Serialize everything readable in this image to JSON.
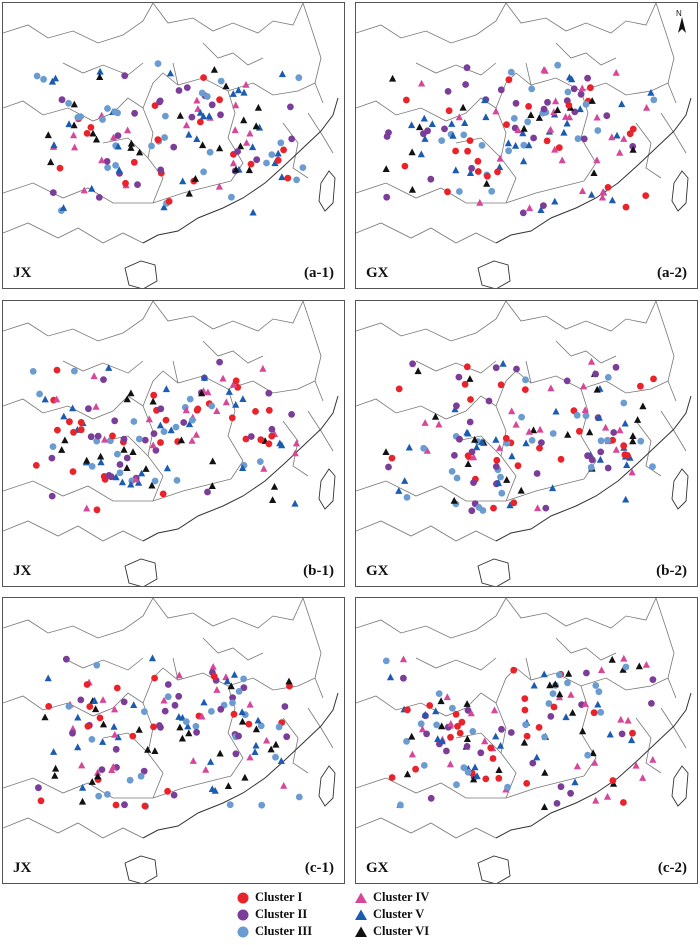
{
  "panels": [
    {
      "id": "a-1",
      "code": "JX",
      "tag": "(a-1)",
      "show_north": false
    },
    {
      "id": "a-2",
      "code": "GX",
      "tag": "(a-2)",
      "show_north": true
    },
    {
      "id": "b-1",
      "code": "JX",
      "tag": "(b-1)",
      "show_north": false
    },
    {
      "id": "b-2",
      "code": "GX",
      "tag": "(b-2)",
      "show_north": false
    },
    {
      "id": "c-1",
      "code": "JX",
      "tag": "(c-1)",
      "show_north": false
    },
    {
      "id": "c-2",
      "code": "GX",
      "tag": "(c-2)",
      "show_north": false
    }
  ],
  "north_arrow": {
    "letter": "N"
  },
  "legend": {
    "items": [
      {
        "label": "Cluster I",
        "shape": "circle",
        "color": "#e8232a"
      },
      {
        "label": "Cluster II",
        "shape": "circle",
        "color": "#7b3d98"
      },
      {
        "label": "Cluster III",
        "shape": "circle",
        "color": "#6a9bd1"
      },
      {
        "label": "Cluster IV",
        "shape": "triangle",
        "color": "#d6479a"
      },
      {
        "label": "Cluster V",
        "shape": "triangle",
        "color": "#1c5cb0"
      },
      {
        "label": "Cluster VI",
        "shape": "triangle",
        "color": "#111111"
      }
    ]
  }
}
